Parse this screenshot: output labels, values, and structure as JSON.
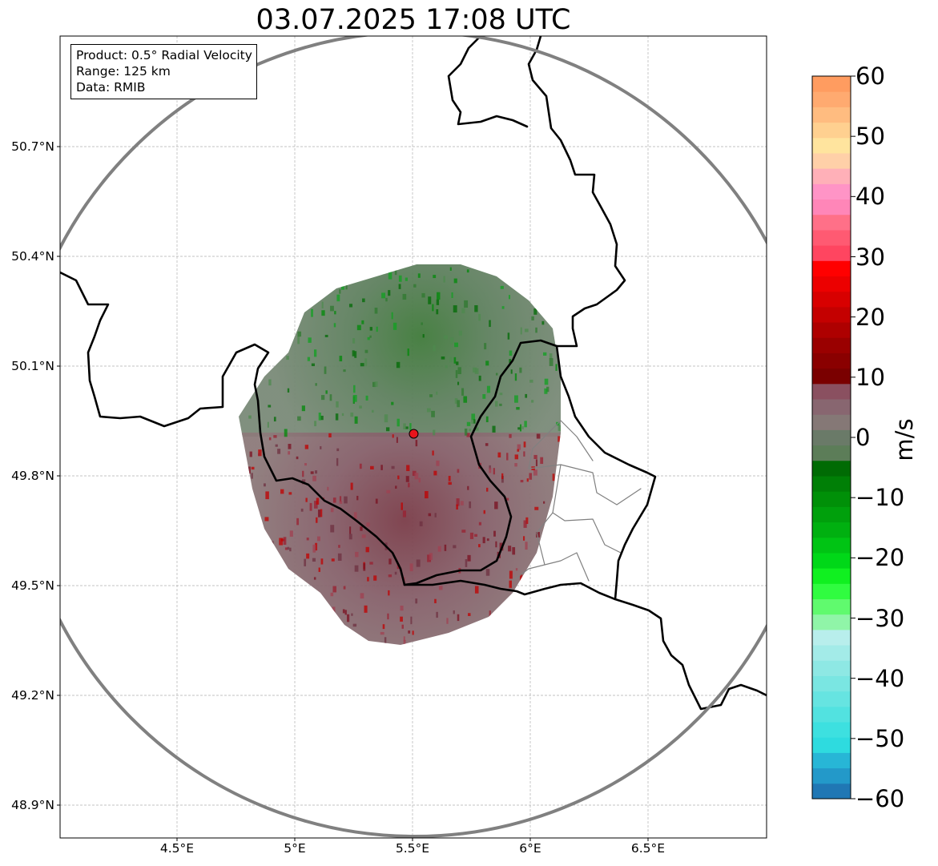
{
  "title": "03.07.2025 17:08 UTC",
  "info_box": {
    "product": "Product: 0.5° Radial Velocity",
    "range": "Range: 125 km",
    "data": "Data: RMIB"
  },
  "map": {
    "lon_ticks": [
      4.5,
      5.0,
      5.5,
      6.0,
      6.5
    ],
    "lon_tick_labels": [
      "4.5°E",
      "5°E",
      "5.5°E",
      "6°E",
      "6.5°E"
    ],
    "lat_ticks": [
      50.7,
      50.4,
      50.1,
      49.8,
      49.5,
      49.2,
      48.9
    ],
    "lat_tick_labels": [
      "50.7°N",
      "50.4°N",
      "50.1°N",
      "49.8°N",
      "49.5°N",
      "49.2°N",
      "48.9°N"
    ],
    "lon_range": [
      4.0,
      7.0
    ],
    "lat_range": [
      48.8,
      51.0
    ],
    "gridlines": true,
    "radar_site": {
      "lon": 5.505,
      "lat": 49.915,
      "color": "#e8141c"
    },
    "range_ring_km": 125,
    "range_ring_color": "#808080",
    "border_color": "#000000",
    "admin_border_color": "#808080"
  },
  "colorbar": {
    "label": "m/s",
    "min": -60,
    "max": 60,
    "ticks": [
      60,
      50,
      40,
      30,
      20,
      10,
      0,
      -10,
      -20,
      -30,
      -40,
      -50,
      -60
    ],
    "tick_labels": [
      "60",
      "50",
      "40",
      "30",
      "20",
      "10",
      "0",
      "−10",
      "−20",
      "−30",
      "−40",
      "−50",
      "−60"
    ],
    "colors": [
      "#2077b4",
      "#2399c9",
      "#27b6d6",
      "#2edbdf",
      "#3de0e0",
      "#52e2e0",
      "#66e4e1",
      "#7ae6e2",
      "#8ee8e4",
      "#a3ebe8",
      "#b8eeec",
      "#90f5a8",
      "#60fa6e",
      "#30fc40",
      "#10f020",
      "#00d818",
      "#00c414",
      "#00b010",
      "#00a00c",
      "#009008",
      "#007f06",
      "#006b04",
      "#5c7d58",
      "#6a7a68",
      "#857876",
      "#886670",
      "#8a5060",
      "#7a0000",
      "#8a0000",
      "#9a0000",
      "#ae0000",
      "#c40000",
      "#d80000",
      "#ec0000",
      "#ff0000",
      "#ff4560",
      "#ff5a72",
      "#ff7088",
      "#ff86b8",
      "#ff94c6",
      "#ffb0b8",
      "#ffd0a8",
      "#ffe49e",
      "#ffd090",
      "#ffbc80",
      "#ffaa70",
      "#ff9c60"
    ]
  }
}
